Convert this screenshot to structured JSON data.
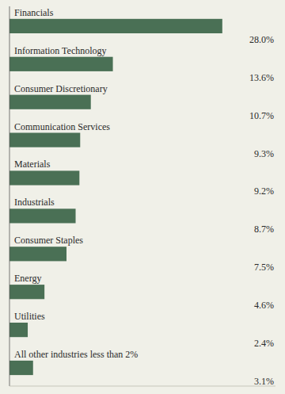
{
  "chart_data": {
    "type": "bar",
    "orientation": "horizontal",
    "categories": [
      "Financials",
      "Information Technology",
      "Consumer Discretionary",
      "Communication Services",
      "Materials",
      "Industrials",
      "Consumer Staples",
      "Energy",
      "Utilities",
      "All other industries less than 2%"
    ],
    "values": [
      28.0,
      13.6,
      10.7,
      9.3,
      9.2,
      8.7,
      7.5,
      4.6,
      2.4,
      3.1
    ],
    "value_labels": [
      "28.0%",
      "13.6%",
      "10.7%",
      "9.3%",
      "9.2%",
      "8.7%",
      "7.5%",
      "4.6%",
      "2.4%",
      "3.1%"
    ],
    "color": "#4a7055",
    "xlim": [
      0,
      35
    ],
    "data_labels": true,
    "tick_labels": false,
    "grid": false
  }
}
